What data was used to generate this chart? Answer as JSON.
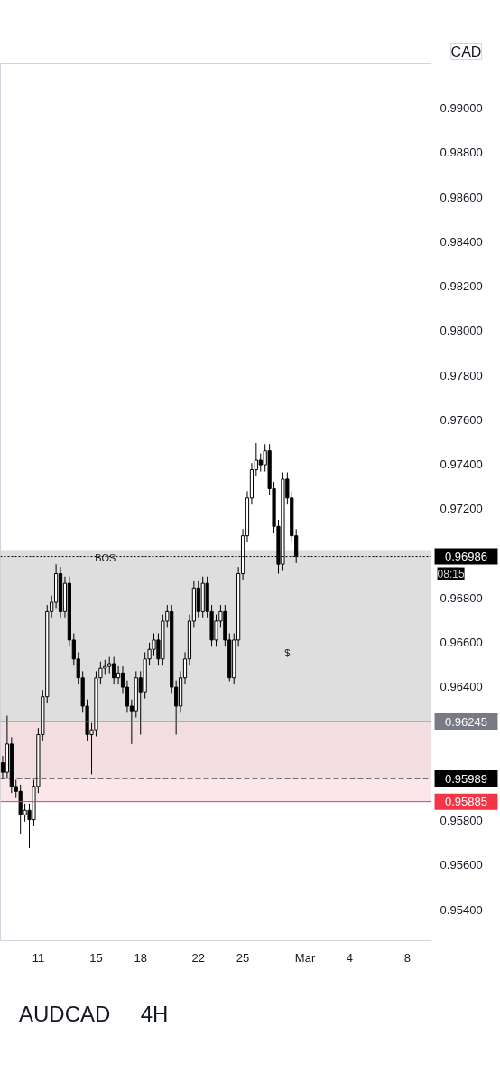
{
  "chart_data": {
    "type": "candlestick",
    "title": "AUDCAD",
    "subtitle": "4H",
    "ohlc": [
      [
        0.9606,
        0.9609,
        0.95987,
        0.96017
      ],
      [
        0.96017,
        0.96271,
        0.95987,
        0.96144
      ],
      [
        0.96144,
        0.96174,
        0.95923,
        0.95953
      ],
      [
        0.95953,
        0.95983,
        0.95901,
        0.95931
      ],
      [
        0.95931,
        0.95961,
        0.9574,
        0.95825
      ],
      [
        0.95825,
        0.95876,
        0.95795,
        0.95846
      ],
      [
        0.95846,
        0.95876,
        0.95676,
        0.95804
      ],
      [
        0.95804,
        0.95983,
        0.95774,
        0.95953
      ],
      [
        0.95953,
        0.96216,
        0.95923,
        0.96186
      ],
      [
        0.96186,
        0.96386,
        0.96156,
        0.96356
      ],
      [
        0.96356,
        0.96769,
        0.96326,
        0.96739
      ],
      [
        0.96739,
        0.96811,
        0.96709,
        0.96781
      ],
      [
        0.96781,
        0.96951,
        0.96751,
        0.96909
      ],
      [
        0.96909,
        0.96939,
        0.96709,
        0.96739
      ],
      [
        0.96739,
        0.96896,
        0.96709,
        0.96866
      ],
      [
        0.96866,
        0.96896,
        0.96581,
        0.96611
      ],
      [
        0.96611,
        0.96641,
        0.96496,
        0.96526
      ],
      [
        0.96526,
        0.96556,
        0.96411,
        0.96441
      ],
      [
        0.96441,
        0.96471,
        0.96284,
        0.96314
      ],
      [
        0.96314,
        0.96344,
        0.96156,
        0.96186
      ],
      [
        0.96186,
        0.96238,
        0.96008,
        0.96208
      ],
      [
        0.96208,
        0.96471,
        0.96178,
        0.96441
      ],
      [
        0.96441,
        0.96514,
        0.96411,
        0.96484
      ],
      [
        0.96484,
        0.96522,
        0.96454,
        0.96492
      ],
      [
        0.96492,
        0.96535,
        0.96462,
        0.96505
      ],
      [
        0.96505,
        0.96535,
        0.96411,
        0.96441
      ],
      [
        0.96441,
        0.96493,
        0.96411,
        0.96463
      ],
      [
        0.96463,
        0.96493,
        0.96369,
        0.96399
      ],
      [
        0.96399,
        0.96429,
        0.96284,
        0.96314
      ],
      [
        0.96314,
        0.96344,
        0.96144,
        0.96293
      ],
      [
        0.96293,
        0.96471,
        0.96263,
        0.96441
      ],
      [
        0.96441,
        0.96471,
        0.96186,
        0.96378
      ],
      [
        0.96378,
        0.96556,
        0.96348,
        0.96526
      ],
      [
        0.96526,
        0.96599,
        0.96496,
        0.96569
      ],
      [
        0.96569,
        0.96641,
        0.96539,
        0.96611
      ],
      [
        0.96611,
        0.96641,
        0.96496,
        0.96526
      ],
      [
        0.96526,
        0.96726,
        0.96496,
        0.96696
      ],
      [
        0.96696,
        0.96769,
        0.96666,
        0.96739
      ],
      [
        0.96739,
        0.96769,
        0.96369,
        0.96399
      ],
      [
        0.96399,
        0.96429,
        0.96186,
        0.96314
      ],
      [
        0.96314,
        0.96471,
        0.96284,
        0.96441
      ],
      [
        0.96441,
        0.96556,
        0.96411,
        0.96526
      ],
      [
        0.96526,
        0.96726,
        0.96496,
        0.96696
      ],
      [
        0.96696,
        0.96875,
        0.96666,
        0.96845
      ],
      [
        0.96845,
        0.96875,
        0.96709,
        0.96739
      ],
      [
        0.96739,
        0.96896,
        0.96709,
        0.96866
      ],
      [
        0.96866,
        0.96896,
        0.96709,
        0.96739
      ],
      [
        0.96739,
        0.96769,
        0.96581,
        0.96611
      ],
      [
        0.96611,
        0.96726,
        0.96581,
        0.96696
      ],
      [
        0.96696,
        0.96769,
        0.96666,
        0.96739
      ],
      [
        0.96739,
        0.96769,
        0.96581,
        0.96611
      ],
      [
        0.96611,
        0.96641,
        0.96426,
        0.96441
      ],
      [
        0.96441,
        0.96641,
        0.96411,
        0.96611
      ],
      [
        0.96611,
        0.96939,
        0.96581,
        0.96909
      ],
      [
        0.96909,
        0.97109,
        0.96879,
        0.97079
      ],
      [
        0.97079,
        0.97279,
        0.97049,
        0.97249
      ],
      [
        0.97249,
        0.97406,
        0.97219,
        0.97376
      ],
      [
        0.97376,
        0.97496,
        0.97346,
        0.97419
      ],
      [
        0.97419,
        0.97449,
        0.97368,
        0.97398
      ],
      [
        0.97398,
        0.97491,
        0.97368,
        0.97461
      ],
      [
        0.97461,
        0.97491,
        0.97261,
        0.97291
      ],
      [
        0.97291,
        0.97321,
        0.97091,
        0.97121
      ],
      [
        0.97121,
        0.97151,
        0.96909,
        0.96951
      ],
      [
        0.96951,
        0.97364,
        0.96921,
        0.97334
      ],
      [
        0.97334,
        0.97364,
        0.97219,
        0.97249
      ],
      [
        0.97249,
        0.97279,
        0.97049,
        0.97079
      ],
      [
        0.97079,
        0.97109,
        0.96956,
        0.96986
      ],
      null,
      null,
      null,
      null,
      null,
      null,
      null,
      null,
      null,
      null,
      null,
      null,
      null,
      null,
      null,
      null,
      null,
      null,
      null,
      null,
      null,
      null,
      null,
      null,
      null,
      null,
      null,
      null,
      null,
      null
    ],
    "color": "#000000",
    "categories": [
      null,
      null,
      null,
      null,
      null,
      null,
      null,
      null,
      "11",
      null,
      null,
      null,
      null,
      null,
      null,
      null,
      null,
      null,
      null,
      null,
      null,
      "15",
      null,
      null,
      null,
      null,
      null,
      null,
      null,
      null,
      null,
      "18",
      null,
      null,
      null,
      null,
      null,
      null,
      null,
      null,
      null,
      null,
      null,
      null,
      "22",
      null,
      null,
      null,
      null,
      null,
      null,
      null,
      null,
      null,
      "25",
      null,
      null,
      null,
      null,
      null,
      null,
      null,
      null,
      null,
      null,
      null,
      null,
      null,
      "Mar",
      null,
      null,
      null,
      null,
      null,
      null,
      null,
      null,
      null,
      "4",
      null,
      null,
      null,
      null,
      null,
      null,
      null,
      null,
      null,
      null,
      null,
      null,
      "8",
      null,
      null,
      null,
      null,
      null
    ],
    "ylim": [
      0.9526,
      0.992
    ],
    "yticks": [
      {
        "value": 0.954,
        "label": "0.95400"
      },
      {
        "value": 0.956,
        "label": "0.95600"
      },
      {
        "value": 0.958,
        "label": "0.95800"
      },
      {
        "value": 0.964,
        "label": "0.96400"
      },
      {
        "value": 0.966,
        "label": "0.96600"
      },
      {
        "value": 0.968,
        "label": "0.96800"
      },
      {
        "value": 0.972,
        "label": "0.97200"
      },
      {
        "value": 0.974,
        "label": "0.97400"
      },
      {
        "value": 0.976,
        "label": "0.97600"
      },
      {
        "value": 0.978,
        "label": "0.97800"
      },
      {
        "value": 0.98,
        "label": "0.98000"
      },
      {
        "value": 0.982,
        "label": "0.98200"
      },
      {
        "value": 0.984,
        "label": "0.98400"
      },
      {
        "value": 0.986,
        "label": "0.98600"
      },
      {
        "value": 0.988,
        "label": "0.98800"
      },
      {
        "value": 0.99,
        "label": "0.99000"
      }
    ],
    "grid": false,
    "ref_lines": [
      {
        "axis": "y",
        "value": 0.96986,
        "label": "0.96986",
        "color": "#000000",
        "line_style": "dotted"
      },
      {
        "axis": "y",
        "value": 0.96245,
        "label": "0.96245",
        "color": "#787b86",
        "line_style": "solid"
      },
      {
        "axis": "y",
        "value": 0.95989,
        "label": "0.95989",
        "color": "#000000",
        "line_style": "dashed"
      },
      {
        "axis": "y",
        "value": 0.95885,
        "label": "0.95885",
        "color": "#f23645",
        "line_style": "solid"
      }
    ],
    "bands": [
      {
        "axis": "y",
        "from": 0.95989,
        "to": 0.96245,
        "color": "#d9d9d9"
      },
      {
        "axis": "y",
        "from": 0.96245,
        "to": 0.97015,
        "color": "#bdbdbd"
      },
      {
        "axis": "y",
        "from": 0.95885,
        "to": 0.96245,
        "color": "#f8d0d4"
      }
    ],
    "annotations": [
      {
        "text": "BOS",
        "y": 0.96981
      },
      "$",
      "08:15",
      "CAD"
    ]
  }
}
